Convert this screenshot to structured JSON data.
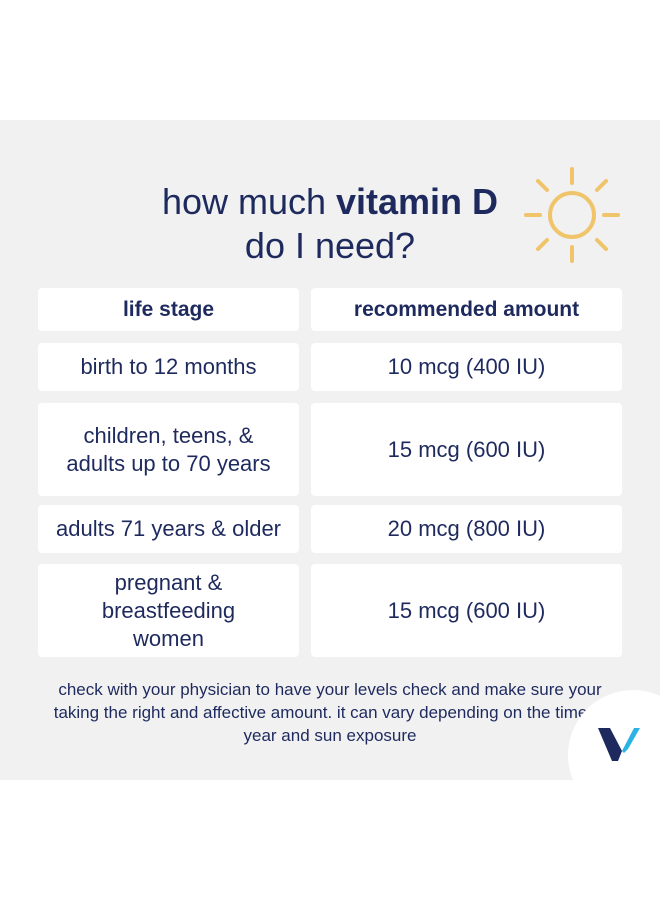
{
  "title": {
    "prefix": "how much ",
    "bold": "vitamin D",
    "line2": "do I need?"
  },
  "table": {
    "headers": [
      "life stage",
      "recommended amount"
    ],
    "rows": [
      {
        "stage": "birth to 12 months",
        "amount": "10 mcg (400 IU)"
      },
      {
        "stage": "children, teens, & adults up to 70 years",
        "amount": "15 mcg (600 IU)"
      },
      {
        "stage": "adults 71 years & older",
        "amount": "20 mcg (800 IU)"
      },
      {
        "stage": "pregnant & breastfeeding women",
        "amount": "15 mcg (600 IU)"
      }
    ]
  },
  "note": "check with your physician to have your levels check and make sure your taking the right and affective amount. it can vary depending on the time of year and sun exposure",
  "colors": {
    "navy": "#1e2a5e",
    "sun": "#f0c46a",
    "panel": "#f1f1f1",
    "logo_light": "#2bb3e6"
  },
  "icons": {
    "sun": "sun-icon",
    "logo": "brand-v-logo"
  }
}
